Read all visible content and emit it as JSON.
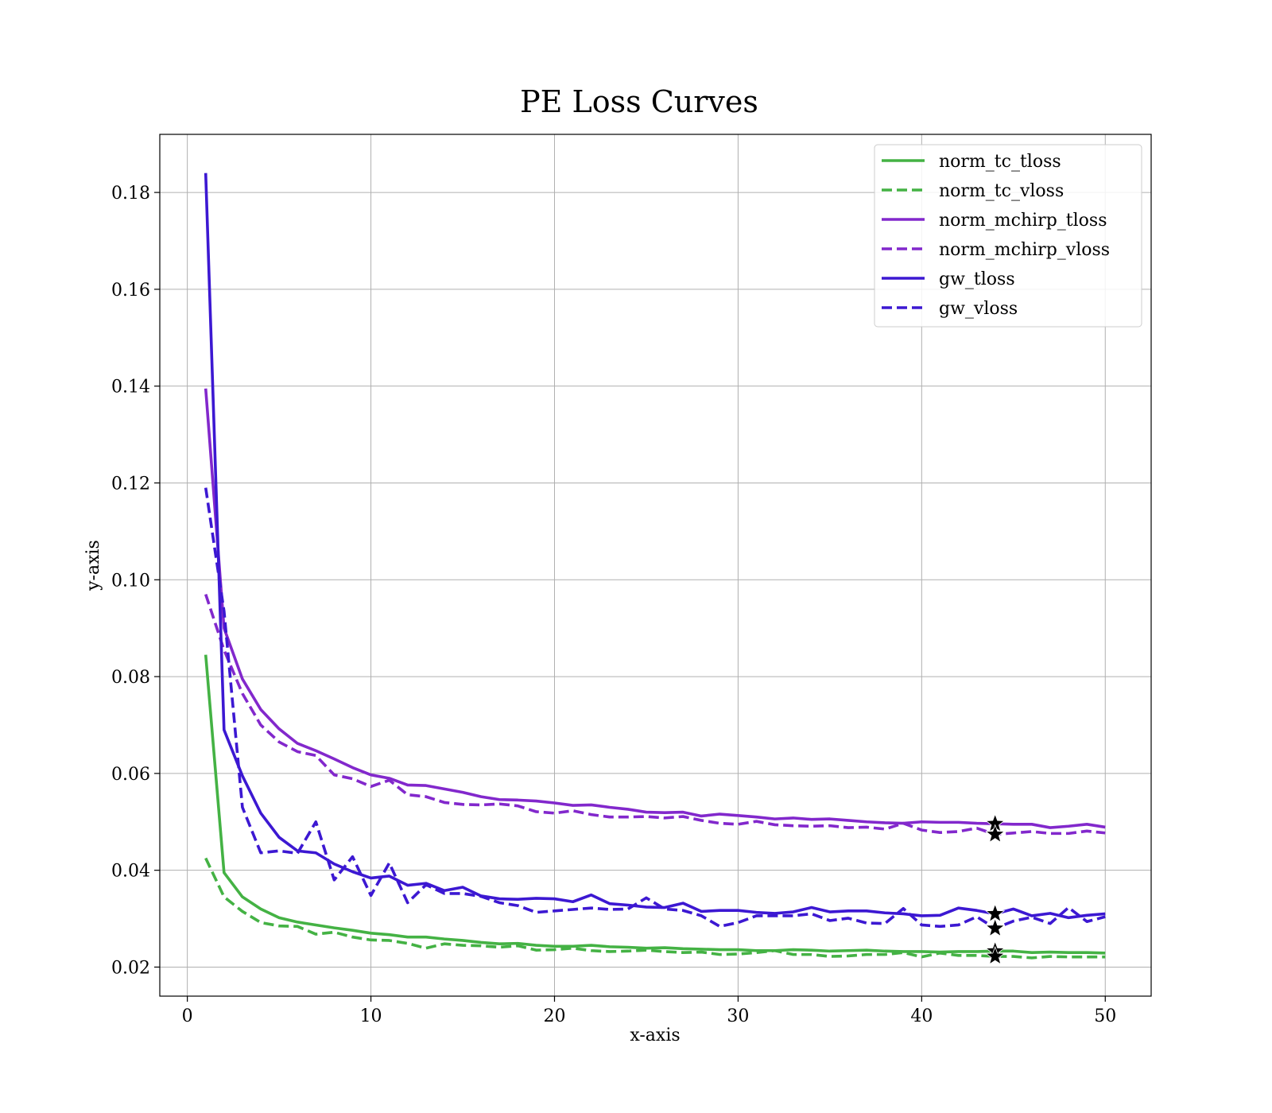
{
  "chart_data": {
    "type": "line",
    "title": "PE Loss Curves",
    "xlabel": "x-axis",
    "ylabel": "y-axis",
    "xlim": [
      -1.5,
      52.5
    ],
    "ylim": [
      0.014,
      0.192
    ],
    "xticks": [
      0,
      10,
      20,
      30,
      40,
      50
    ],
    "yticks": [
      0.02,
      0.04,
      0.06,
      0.08,
      0.1,
      0.12,
      0.14,
      0.16,
      0.18
    ],
    "ytick_labels": [
      "0.02",
      "0.04",
      "0.06",
      "0.08",
      "0.10",
      "0.12",
      "0.14",
      "0.16",
      "0.18"
    ],
    "grid": true,
    "legend_position": "top-right",
    "x": [
      1,
      2,
      3,
      4,
      5,
      6,
      7,
      8,
      9,
      10,
      11,
      12,
      13,
      14,
      15,
      16,
      17,
      18,
      19,
      20,
      21,
      22,
      23,
      24,
      25,
      26,
      27,
      28,
      29,
      30,
      31,
      32,
      33,
      34,
      35,
      36,
      37,
      38,
      39,
      40,
      41,
      42,
      43,
      44,
      45,
      46,
      47,
      48,
      49,
      50
    ],
    "series": [
      {
        "name": "norm_tc_tloss",
        "color": "#44b244",
        "style": "solid",
        "values": [
          0.0845,
          0.0395,
          0.0345,
          0.032,
          0.0302,
          0.0293,
          0.0287,
          0.0281,
          0.0276,
          0.027,
          0.0267,
          0.0262,
          0.0262,
          0.0258,
          0.0255,
          0.0251,
          0.0248,
          0.0249,
          0.0245,
          0.0243,
          0.0243,
          0.0245,
          0.0242,
          0.0241,
          0.0239,
          0.024,
          0.0238,
          0.0237,
          0.0236,
          0.0236,
          0.0234,
          0.0234,
          0.0236,
          0.0235,
          0.0233,
          0.0234,
          0.0235,
          0.0233,
          0.0232,
          0.0232,
          0.0231,
          0.0232,
          0.0232,
          0.0233,
          0.0233,
          0.023,
          0.0231,
          0.023,
          0.023,
          0.0229
        ]
      },
      {
        "name": "norm_tc_vloss",
        "color": "#44b244",
        "style": "dashed",
        "values": [
          0.0425,
          0.0345,
          0.0315,
          0.0292,
          0.0285,
          0.0284,
          0.0268,
          0.0272,
          0.0262,
          0.0256,
          0.0255,
          0.0249,
          0.0239,
          0.0248,
          0.0245,
          0.0244,
          0.0241,
          0.0244,
          0.0235,
          0.0236,
          0.0239,
          0.0234,
          0.0232,
          0.0233,
          0.0235,
          0.0232,
          0.023,
          0.0231,
          0.0226,
          0.0227,
          0.023,
          0.0234,
          0.0226,
          0.0226,
          0.0222,
          0.0223,
          0.0226,
          0.0226,
          0.023,
          0.0221,
          0.0229,
          0.0224,
          0.0224,
          0.0222,
          0.0222,
          0.0219,
          0.0222,
          0.0221,
          0.0221,
          0.0221
        ]
      },
      {
        "name": "norm_mchirp_tloss",
        "color": "#8228cc",
        "style": "solid",
        "values": [
          0.1395,
          0.09,
          0.0795,
          0.0732,
          0.0692,
          0.0662,
          0.0647,
          0.063,
          0.0612,
          0.0597,
          0.059,
          0.0576,
          0.0575,
          0.0568,
          0.0561,
          0.0552,
          0.0546,
          0.0545,
          0.0543,
          0.0539,
          0.0534,
          0.0535,
          0.053,
          0.0526,
          0.052,
          0.0519,
          0.052,
          0.0512,
          0.0516,
          0.0513,
          0.051,
          0.0506,
          0.0508,
          0.0505,
          0.0506,
          0.0503,
          0.05,
          0.0498,
          0.0497,
          0.05,
          0.0499,
          0.0499,
          0.0497,
          0.0496,
          0.0495,
          0.0495,
          0.0488,
          0.0491,
          0.0495,
          0.0489
        ]
      },
      {
        "name": "norm_mchirp_vloss",
        "color": "#8228cc",
        "style": "dashed",
        "values": [
          0.097,
          0.0855,
          0.0765,
          0.07,
          0.0665,
          0.0645,
          0.0637,
          0.0597,
          0.0589,
          0.0573,
          0.0586,
          0.0556,
          0.0552,
          0.054,
          0.0536,
          0.0535,
          0.0537,
          0.0533,
          0.0521,
          0.0518,
          0.0523,
          0.0515,
          0.051,
          0.051,
          0.0511,
          0.0508,
          0.0511,
          0.0503,
          0.0497,
          0.0495,
          0.0501,
          0.0494,
          0.0492,
          0.0491,
          0.0492,
          0.0488,
          0.0489,
          0.0485,
          0.0497,
          0.0483,
          0.0478,
          0.048,
          0.0487,
          0.0474,
          0.0477,
          0.048,
          0.0476,
          0.0476,
          0.0481,
          0.0477
        ]
      },
      {
        "name": "gw_tloss",
        "color": "#3c18d2",
        "style": "solid",
        "values": [
          0.184,
          0.069,
          0.0595,
          0.0518,
          0.0468,
          0.044,
          0.0436,
          0.0413,
          0.0397,
          0.0384,
          0.0388,
          0.0369,
          0.0373,
          0.0358,
          0.0365,
          0.0347,
          0.0341,
          0.034,
          0.0342,
          0.0341,
          0.0335,
          0.0349,
          0.0331,
          0.0328,
          0.0324,
          0.0323,
          0.0332,
          0.0315,
          0.0317,
          0.0317,
          0.0313,
          0.0311,
          0.0314,
          0.0323,
          0.0314,
          0.0316,
          0.0316,
          0.0312,
          0.031,
          0.0306,
          0.0307,
          0.0322,
          0.0317,
          0.031,
          0.032,
          0.0306,
          0.0311,
          0.0302,
          0.0307,
          0.031
        ]
      },
      {
        "name": "gw_vloss",
        "color": "#3c18d2",
        "style": "dashed",
        "values": [
          0.119,
          0.0935,
          0.053,
          0.0436,
          0.044,
          0.0435,
          0.05,
          0.038,
          0.0428,
          0.0348,
          0.0415,
          0.0333,
          0.037,
          0.0352,
          0.0352,
          0.0346,
          0.0333,
          0.0327,
          0.0313,
          0.0316,
          0.0319,
          0.0322,
          0.0319,
          0.032,
          0.0343,
          0.032,
          0.0317,
          0.0306,
          0.0284,
          0.0292,
          0.0306,
          0.0306,
          0.0306,
          0.031,
          0.0296,
          0.0301,
          0.0291,
          0.029,
          0.0321,
          0.0287,
          0.0284,
          0.0287,
          0.0304,
          0.028,
          0.0295,
          0.0303,
          0.029,
          0.0323,
          0.0294,
          0.0304
        ]
      }
    ],
    "markers": [
      {
        "x": 44,
        "y": 0.0496,
        "shape": "star",
        "color": "#000000"
      },
      {
        "x": 44,
        "y": 0.0474,
        "shape": "star",
        "color": "#000000"
      },
      {
        "x": 44,
        "y": 0.031,
        "shape": "star",
        "color": "#000000"
      },
      {
        "x": 44,
        "y": 0.028,
        "shape": "star",
        "color": "#000000"
      },
      {
        "x": 44,
        "y": 0.0233,
        "shape": "star",
        "color": "#000000"
      },
      {
        "x": 44,
        "y": 0.0222,
        "shape": "star",
        "color": "#000000"
      }
    ]
  }
}
